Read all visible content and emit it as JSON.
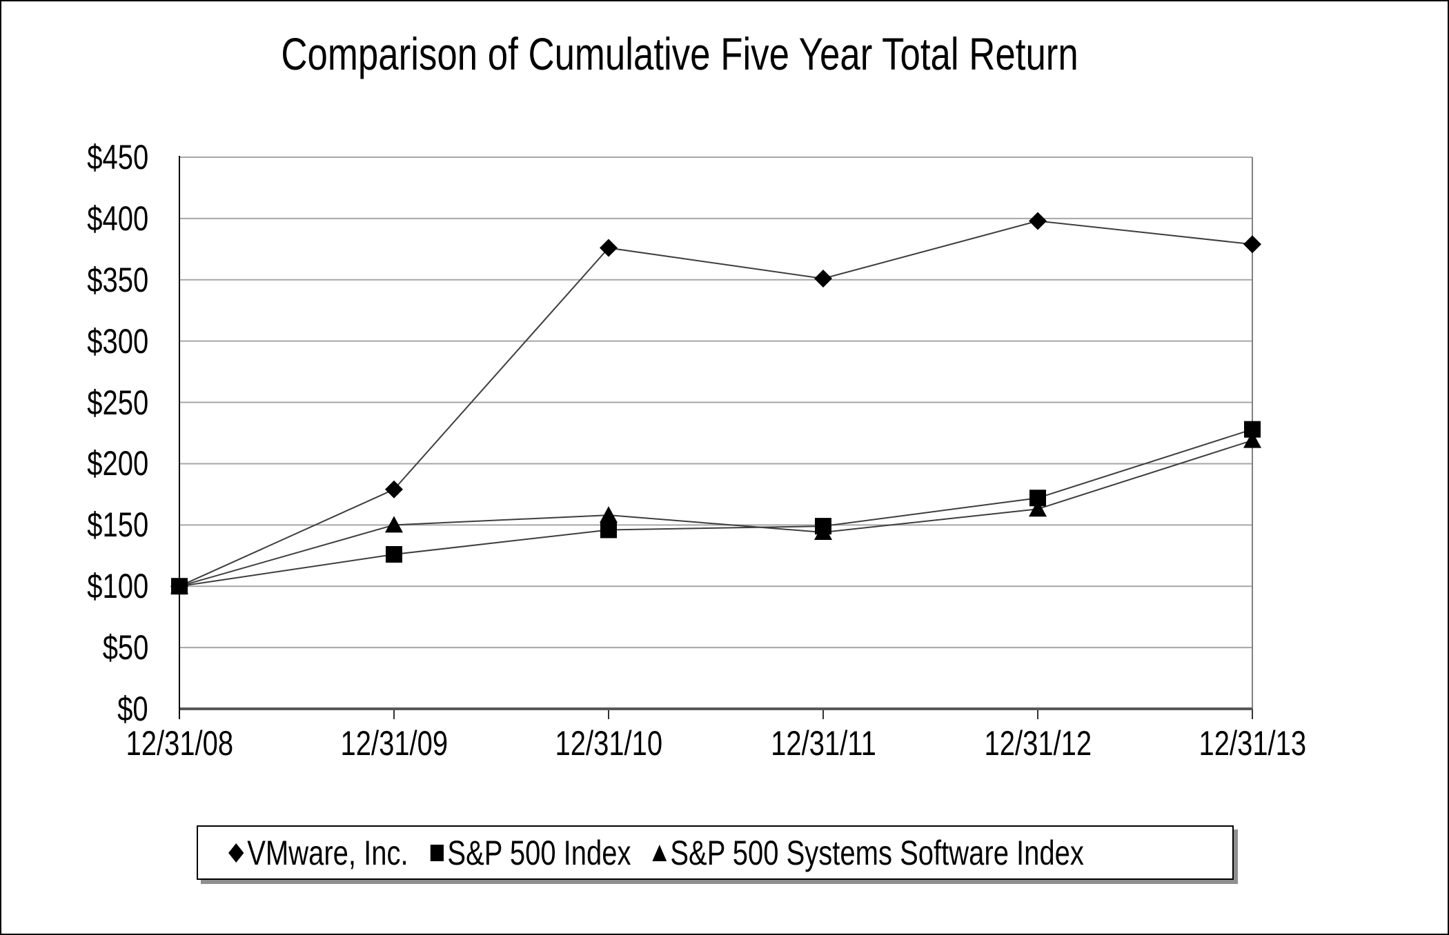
{
  "page": {
    "background_color": "#ffffff",
    "frame_border_color": "#000000"
  },
  "chart_data": {
    "type": "line",
    "title": "Comparison of Cumulative Five Year Total Return",
    "categories": [
      "12/31/08",
      "12/31/09",
      "12/31/10",
      "12/31/11",
      "12/31/12",
      "12/31/13"
    ],
    "series": [
      {
        "name": "VMware, Inc.",
        "marker": "diamond",
        "values": [
          100,
          179,
          376,
          351,
          398,
          379
        ]
      },
      {
        "name": "S&P 500 Index",
        "marker": "square",
        "values": [
          100,
          126,
          146,
          149,
          172,
          228
        ]
      },
      {
        "name": "S&P 500 Systems Software Index",
        "marker": "triangle",
        "values": [
          100,
          150,
          158,
          144,
          163,
          219
        ]
      }
    ],
    "y_axis": {
      "min": 0,
      "max": 450,
      "step": 50,
      "tick_labels": [
        "$0",
        "$50",
        "$100",
        "$150",
        "$200",
        "$250",
        "$300",
        "$350",
        "$400",
        "$450"
      ]
    },
    "x_axis": {
      "tick_labels": [
        "12/31/08",
        "12/31/09",
        "12/31/10",
        "12/31/11",
        "12/31/12",
        "12/31/13"
      ]
    },
    "grid": true,
    "legend_position": "bottom",
    "colors": {
      "marker": "#000000",
      "series_line": "#3d3d3d",
      "gridline": "#a6a6a6",
      "zero_axis": "#595959",
      "left_axis": "#000000",
      "right_border": "#808080",
      "tick": "#333333"
    }
  }
}
